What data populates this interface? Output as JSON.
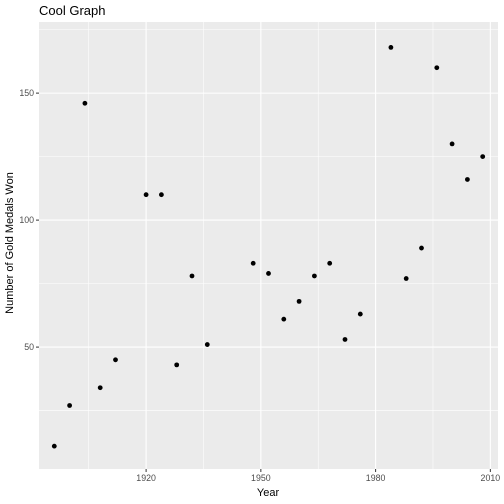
{
  "chart_data": {
    "type": "scatter",
    "title": "Cool Graph",
    "xlabel": "Year",
    "ylabel": "Number of Gold Medals Won",
    "xlim": [
      1892,
      2012
    ],
    "ylim": [
      2,
      178
    ],
    "x_ticks": [
      1920,
      1950,
      1980,
      2010
    ],
    "x_tick_labels": [
      "1920",
      "1950",
      "1980",
      "2010"
    ],
    "y_ticks": [
      50,
      100,
      150
    ],
    "y_tick_labels": [
      "50",
      "100",
      "150"
    ],
    "x_minor": [
      1905,
      1935,
      1965,
      1995
    ],
    "y_minor": [
      25,
      75,
      125,
      175
    ],
    "grid": true,
    "legend": "none",
    "colors": {
      "panel": "#ebebeb",
      "grid": "#ffffff",
      "point": "#000000",
      "tick_text": "#4d4d4d",
      "tick_mark": "#333333"
    },
    "points": [
      {
        "x": 1896,
        "y": 11
      },
      {
        "x": 1900,
        "y": 27
      },
      {
        "x": 1904,
        "y": 146
      },
      {
        "x": 1908,
        "y": 34
      },
      {
        "x": 1912,
        "y": 45
      },
      {
        "x": 1920,
        "y": 110
      },
      {
        "x": 1924,
        "y": 110
      },
      {
        "x": 1928,
        "y": 43
      },
      {
        "x": 1932,
        "y": 78
      },
      {
        "x": 1936,
        "y": 51
      },
      {
        "x": 1948,
        "y": 83
      },
      {
        "x": 1952,
        "y": 79
      },
      {
        "x": 1956,
        "y": 61
      },
      {
        "x": 1960,
        "y": 68
      },
      {
        "x": 1964,
        "y": 78
      },
      {
        "x": 1968,
        "y": 83
      },
      {
        "x": 1972,
        "y": 53
      },
      {
        "x": 1976,
        "y": 63
      },
      {
        "x": 1984,
        "y": 168
      },
      {
        "x": 1988,
        "y": 77
      },
      {
        "x": 1992,
        "y": 89
      },
      {
        "x": 1996,
        "y": 160
      },
      {
        "x": 2000,
        "y": 130
      },
      {
        "x": 2004,
        "y": 116
      },
      {
        "x": 2008,
        "y": 125
      }
    ]
  }
}
